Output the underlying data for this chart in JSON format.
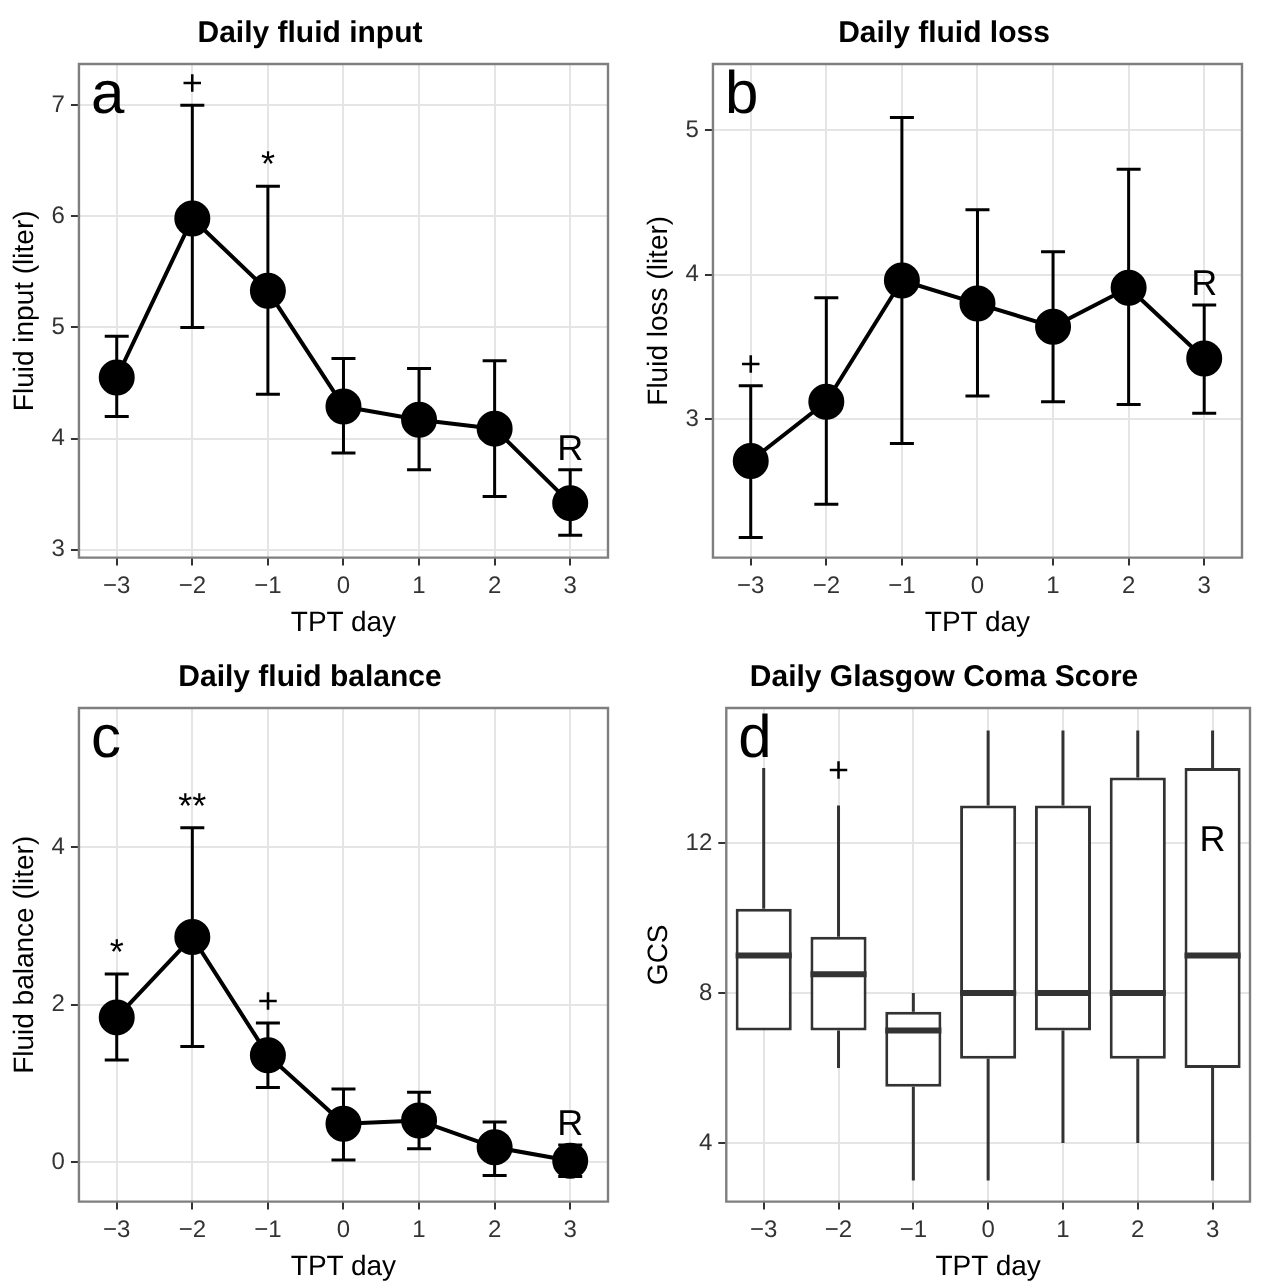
{
  "chart_data": [
    {
      "type": "line",
      "title": "Daily fluid input",
      "xlabel": "TPT day",
      "ylabel": "Fluid input (liter)",
      "categories": [
        "−3",
        "−2",
        "−1",
        "0",
        "1",
        "2",
        "3"
      ],
      "values": [
        4.55,
        5.98,
        5.33,
        4.29,
        4.17,
        4.09,
        3.42
      ],
      "errors": [
        [
          4.2,
          4.92
        ],
        [
          5.0,
          7.0
        ],
        [
          4.4,
          6.27
        ],
        [
          3.87,
          4.72
        ],
        [
          3.72,
          4.63
        ],
        [
          3.48,
          4.7
        ],
        [
          3.13,
          3.72
        ]
      ],
      "color": "#000000",
      "marker": "circle",
      "line_style": "solid",
      "ylim": [
        2.93,
        7.37
      ],
      "yticks": [
        3,
        4,
        5,
        6,
        7
      ],
      "grid": true,
      "annotations": [
        "a",
        {
          "text": "+",
          "x": "−2",
          "y": 7.0
        },
        {
          "text": "*",
          "x": "−1",
          "y": 6.27
        },
        {
          "text": "R",
          "x": "3",
          "y": 3.72
        }
      ]
    },
    {
      "type": "line",
      "title": "Daily fluid loss",
      "xlabel": "TPT day",
      "ylabel": "Fluid loss (liter)",
      "categories": [
        "−3",
        "−2",
        "−1",
        "0",
        "1",
        "2",
        "3"
      ],
      "values": [
        2.71,
        3.12,
        3.96,
        3.8,
        3.64,
        3.91,
        3.42
      ],
      "errors": [
        [
          2.18,
          3.23
        ],
        [
          2.41,
          3.84
        ],
        [
          2.83,
          5.09
        ],
        [
          3.16,
          4.45
        ],
        [
          3.12,
          4.16
        ],
        [
          3.1,
          4.73
        ],
        [
          3.04,
          3.79
        ]
      ],
      "color": "#000000",
      "marker": "circle",
      "line_style": "solid",
      "ylim": [
        2.04,
        5.46
      ],
      "yticks": [
        3,
        4,
        5
      ],
      "grid": true,
      "annotations": [
        "b",
        {
          "text": "+",
          "x": "−3",
          "y": 3.23
        },
        {
          "text": "R",
          "x": "3",
          "y": 3.79
        }
      ]
    },
    {
      "type": "line",
      "title": "Daily fluid balance",
      "xlabel": "TPT day",
      "ylabel": "Fluid balance (liter)",
      "categories": [
        "−3",
        "−2",
        "−1",
        "0",
        "1",
        "2",
        "3"
      ],
      "values": [
        1.84,
        2.86,
        1.36,
        0.49,
        0.53,
        0.19,
        0.02
      ],
      "errors": [
        [
          1.3,
          2.39
        ],
        [
          1.47,
          4.25
        ],
        [
          0.95,
          1.77
        ],
        [
          0.03,
          0.93
        ],
        [
          0.17,
          0.89
        ],
        [
          -0.17,
          0.51
        ],
        [
          -0.18,
          0.22
        ]
      ],
      "color": "#000000",
      "marker": "circle",
      "line_style": "solid",
      "ylim": [
        -0.5,
        5.77
      ],
      "yticks": [
        0,
        2,
        4
      ],
      "grid": true,
      "annotations": [
        "c",
        {
          "text": "*",
          "x": "−3",
          "y": 2.39
        },
        {
          "text": "**",
          "x": "−2",
          "y": 4.25
        },
        {
          "text": "+",
          "x": "−1",
          "y": 1.77
        },
        {
          "text": "R",
          "x": "3",
          "y": 0.22
        }
      ]
    },
    {
      "type": "box",
      "title": "Daily Glasgow Coma Score",
      "xlabel": "TPT day",
      "ylabel": "GCS",
      "categories": [
        "−3",
        "−2",
        "−1",
        "0",
        "1",
        "2",
        "3"
      ],
      "boxes": [
        {
          "low": 7,
          "q1": 7,
          "median": 9,
          "q3": 10.25,
          "high": 14
        },
        {
          "low": 6,
          "q1": 7,
          "median": 8.5,
          "q3": 9.5,
          "high": 13
        },
        {
          "low": 3,
          "q1": 5.5,
          "median": 7,
          "q3": 7.5,
          "high": 8
        },
        {
          "low": 3,
          "q1": 6.25,
          "median": 8,
          "q3": 13,
          "high": 15
        },
        {
          "low": 4,
          "q1": 7,
          "median": 8,
          "q3": 13,
          "high": 15
        },
        {
          "low": 4,
          "q1": 6.25,
          "median": 8,
          "q3": 13.75,
          "high": 15
        },
        {
          "low": 3,
          "q1": 6,
          "median": 9,
          "q3": 14,
          "high": 15
        }
      ],
      "color": "#333333",
      "ylim": [
        2.44,
        15.6
      ],
      "yticks": [
        4,
        8,
        12
      ],
      "grid": true,
      "annotations": [
        "d",
        "+",
        "R"
      ]
    }
  ]
}
